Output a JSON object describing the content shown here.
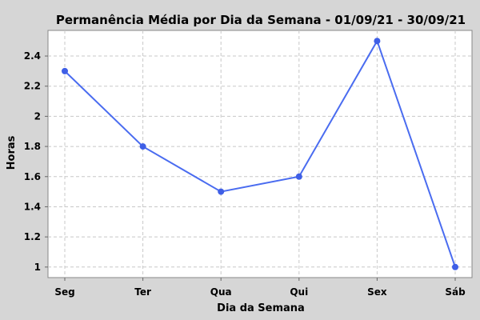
{
  "chart_data": {
    "type": "line",
    "title": "Permanência Média por Dia da Semana - 01/09/21 - 30/09/21",
    "xlabel": "Dia da Semana",
    "ylabel": "Horas",
    "categories": [
      "Seg",
      "Ter",
      "Qua",
      "Qui",
      "Sex",
      "Sáb"
    ],
    "series": [
      {
        "values": [
          2.3,
          1.8,
          1.5,
          1.6,
          2.5,
          1.0
        ]
      }
    ],
    "ylim": [
      0.93,
      2.57
    ],
    "yticks": [
      1,
      1.2,
      1.4,
      1.6,
      1.8,
      2,
      2.2,
      2.4
    ],
    "ytick_labels": [
      "1",
      "1.2",
      "1.4",
      "1.6",
      "1.8",
      "2",
      "2.2",
      "2.4"
    ],
    "grid": true,
    "legend": "none",
    "colors": {
      "background": "#d6d6d6",
      "plot_background": "#ffffff",
      "line": "#4a6cf0",
      "marker": "#3f5fe6",
      "grid": "#c8c8c8"
    }
  }
}
